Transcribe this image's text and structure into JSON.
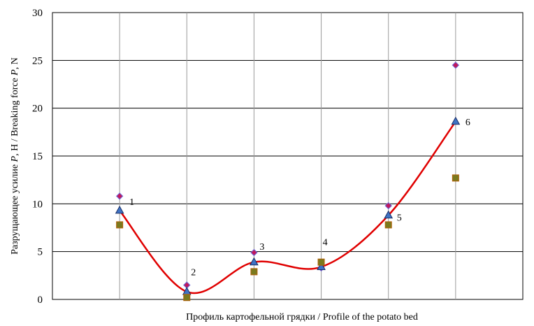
{
  "chart_data": {
    "type": "scatter",
    "title": "",
    "xlabel": "Профиль картофельной грядки / Profile of the potato bed",
    "ylabel_parts": [
      "Разрущающее усилие ",
      "P",
      ", Н / Breaking force ",
      "P",
      ", N"
    ],
    "ylim": [
      0,
      30
    ],
    "yticks": [
      0,
      5,
      10,
      15,
      20,
      25,
      30
    ],
    "grid": true,
    "legend": "none",
    "x": [
      1,
      2,
      3,
      4,
      5,
      6
    ],
    "point_labels": [
      "1",
      "2",
      "3",
      "4",
      "5",
      "6"
    ],
    "series": [
      {
        "marker": "diamond",
        "color": "#c2185b",
        "values": [
          10.8,
          1.5,
          4.9,
          3.3,
          9.8,
          24.5
        ]
      },
      {
        "marker": "triangle",
        "color": "#3f73c4",
        "values": [
          9.3,
          0.8,
          3.9,
          3.4,
          8.8,
          18.6
        ]
      },
      {
        "marker": "square",
        "color": "#7a7a1e",
        "values": [
          7.8,
          0.2,
          2.9,
          3.9,
          7.8,
          12.7
        ]
      }
    ],
    "trend": {
      "color": "#e00000",
      "type": "smooth-curve",
      "values": [
        9.3,
        0.8,
        3.9,
        3.4,
        8.8,
        18.6
      ]
    }
  }
}
